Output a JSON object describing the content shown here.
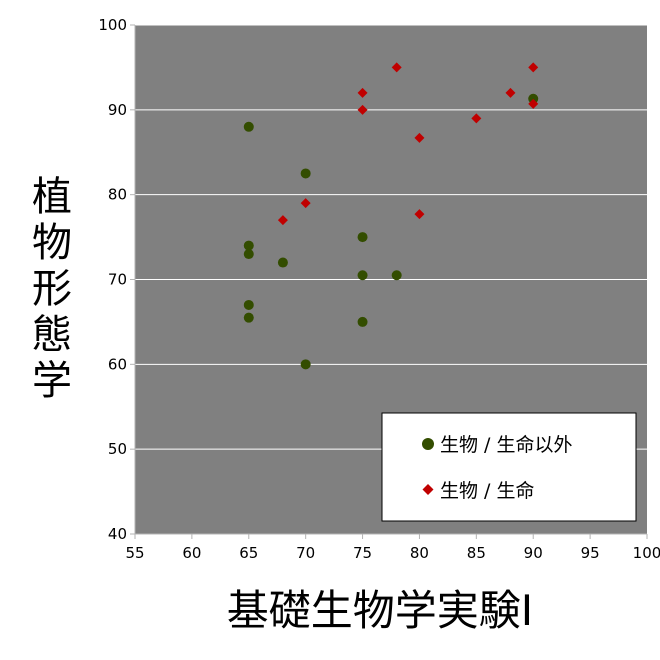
{
  "chart_data": {
    "type": "scatter",
    "title": "",
    "xlabel": "基礎生物学実験I",
    "ylabel": "植物形態学",
    "xlim": [
      55,
      100
    ],
    "ylim": [
      40,
      100
    ],
    "xticks": [
      55,
      60,
      65,
      70,
      75,
      80,
      85,
      90,
      95,
      100
    ],
    "yticks": [
      40,
      50,
      60,
      70,
      80,
      90,
      100
    ],
    "grid": "horizontal",
    "plot_background": "#808080",
    "legend": "inside-bottom-right",
    "series": [
      {
        "name": "生物 / 生命以外",
        "marker": "circle",
        "color": "#334d00",
        "points": [
          [
            65,
            88
          ],
          [
            65,
            74
          ],
          [
            65,
            73
          ],
          [
            65,
            67
          ],
          [
            65,
            65.5
          ],
          [
            68,
            72
          ],
          [
            70,
            82.5
          ],
          [
            70,
            60
          ],
          [
            75,
            75
          ],
          [
            75,
            70.5
          ],
          [
            75,
            65
          ],
          [
            78,
            70.5
          ],
          [
            90,
            91.3
          ]
        ]
      },
      {
        "name": "生物 / 生命",
        "marker": "diamond",
        "color": "#c00000",
        "points": [
          [
            68,
            77
          ],
          [
            70,
            79
          ],
          [
            75,
            92
          ],
          [
            75,
            90
          ],
          [
            78,
            95
          ],
          [
            80,
            86.7
          ],
          [
            80,
            77.7
          ],
          [
            85,
            89
          ],
          [
            88,
            92
          ],
          [
            90,
            95
          ],
          [
            90,
            90.7
          ]
        ]
      }
    ]
  }
}
